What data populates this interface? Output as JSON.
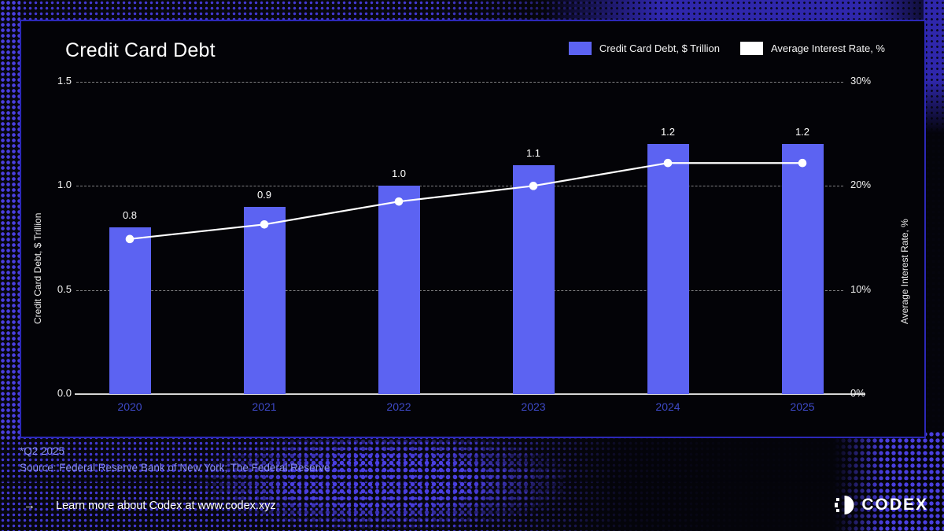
{
  "page": {
    "title": "Credit Card Debt",
    "footnote_line1": "*Q2 2025",
    "footnote_line2": "Source: Federal Reserve Bank of New York; The Federal Reserve",
    "footer": {
      "arrow": "→",
      "cta": "Learn more about Codex at www.codex.xyz",
      "brand": "CODEX"
    }
  },
  "legend": [
    {
      "label": "Credit Card Debt, $ Trillion",
      "color": "#5c63f2"
    },
    {
      "label": "Average Interest Rate, %",
      "color": "#ffffff"
    }
  ],
  "colors": {
    "bar": "#5c63f2",
    "line": "#ffffff",
    "panel_border": "#2c28b8",
    "halftone_dot": "#4238d2",
    "year_label": "#3e4ac8",
    "footnote": "#8a8ff2"
  },
  "chart_data": {
    "type": "combo",
    "title": "Credit Card Debt",
    "categories": [
      "2020",
      "2021",
      "2022",
      "2023",
      "2024",
      "2025"
    ],
    "series": [
      {
        "name": "Credit Card Debt, $ Trillion",
        "kind": "bar",
        "axis": "left",
        "color": "#5c63f2",
        "values": [
          0.8,
          0.9,
          1.0,
          1.1,
          1.2,
          1.2
        ],
        "labels": [
          "0.8",
          "0.9",
          "1.0",
          "1.1",
          "1.2",
          "1.2"
        ]
      },
      {
        "name": "Average Interest Rate, %",
        "kind": "line",
        "axis": "right",
        "color": "#ffffff",
        "values": [
          14.9,
          16.3,
          18.5,
          20.0,
          22.2,
          22.2
        ]
      }
    ],
    "left_axis": {
      "label": "Credit Card Debt, $ Trillion",
      "lim": [
        0,
        1.5
      ],
      "ticks": [
        {
          "v": 0.0,
          "label": "0.0"
        },
        {
          "v": 0.5,
          "label": "0.5"
        },
        {
          "v": 1.0,
          "label": "1.0"
        },
        {
          "v": 1.5,
          "label": "1.5"
        }
      ]
    },
    "right_axis": {
      "label": "Average Interest Rate, %",
      "lim": [
        0,
        30
      ],
      "ticks": [
        {
          "v": 0,
          "label": "0%"
        },
        {
          "v": 10,
          "label": "10%"
        },
        {
          "v": 20,
          "label": "20%"
        },
        {
          "v": 30,
          "label": "30%"
        }
      ]
    },
    "grid": "dashed horizontal",
    "legend_position": "top-right"
  }
}
